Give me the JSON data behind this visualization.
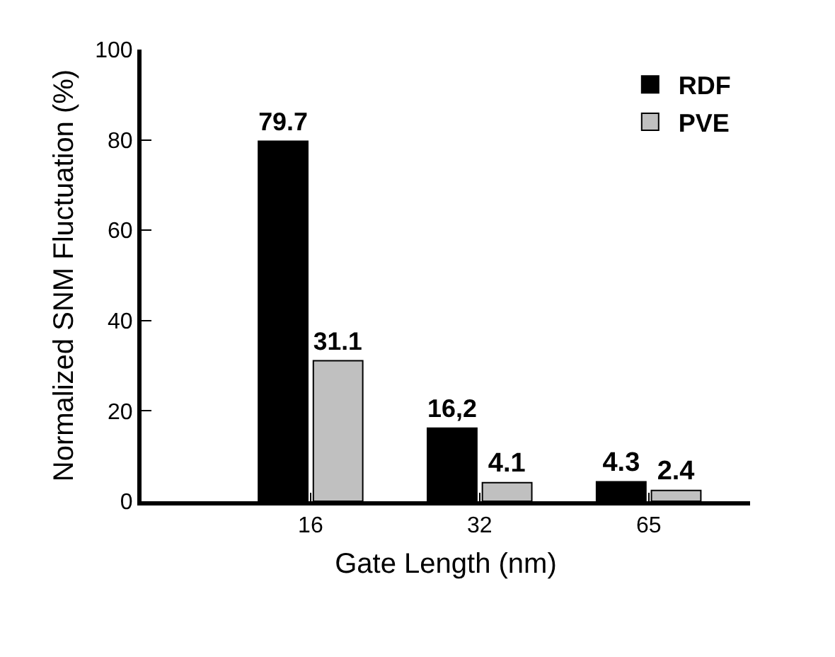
{
  "chart_data": {
    "type": "bar",
    "xlabel": "Gate Length (nm)",
    "ylabel": "Normalized SNM Fluctuation (%)",
    "categories": [
      "16",
      "32",
      "65"
    ],
    "series": [
      {
        "name": "RDF",
        "color": "#000000",
        "values": [
          79.7,
          16.2,
          4.3
        ],
        "value_labels": [
          "79.7",
          "16,2",
          "4.3"
        ]
      },
      {
        "name": "PVE",
        "color": "#c0c0c0",
        "values": [
          31.1,
          4.1,
          2.4
        ],
        "value_labels": [
          "31.1",
          "4.1",
          "2.4"
        ]
      }
    ],
    "ylim": [
      0,
      100
    ],
    "yticks": [
      0,
      20,
      40,
      60,
      80,
      100
    ],
    "grid": false,
    "legend": "top right"
  }
}
